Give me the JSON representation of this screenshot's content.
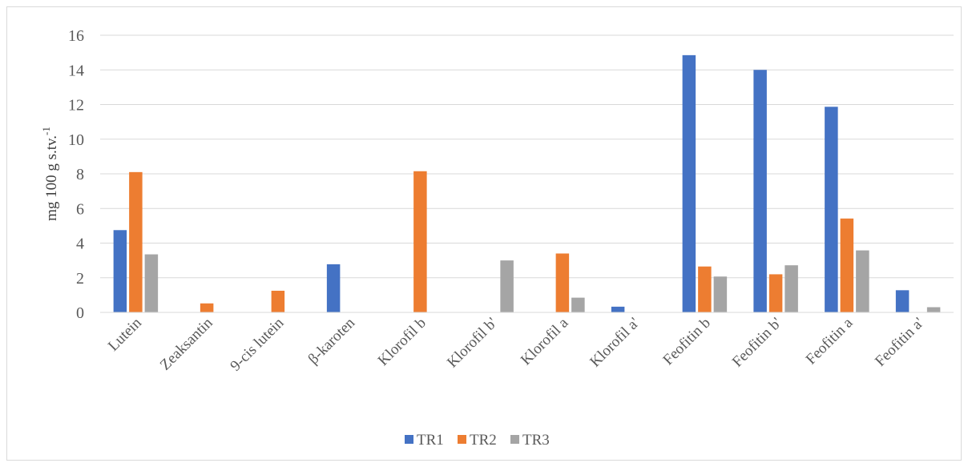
{
  "chart_data": {
    "type": "bar",
    "y_label": "mg 100 g s.tv.",
    "y_label_superscript": "-1",
    "categories": [
      "Lutein",
      "Zeaksantin",
      "9-cis lutein",
      "β-karoten",
      "Klorofil b",
      "Klorofil b'",
      "Klorofil a",
      "Klorofil a'",
      "Feofitin b",
      "Feofitin b'",
      "Feofitin a",
      "Feofitin a'"
    ],
    "series": [
      {
        "name": "TR1",
        "color": "#4472c4",
        "values": [
          4.75,
          0,
          0,
          2.78,
          0,
          0,
          0,
          0.33,
          14.85,
          14.0,
          11.87,
          1.28
        ]
      },
      {
        "name": "TR2",
        "color": "#ed7d31",
        "values": [
          8.1,
          0.52,
          1.25,
          0,
          8.15,
          0,
          3.4,
          0,
          2.65,
          2.2,
          5.42,
          0
        ]
      },
      {
        "name": "TR3",
        "color": "#a5a5a5",
        "values": [
          3.35,
          0,
          0,
          0,
          0,
          3.0,
          0.85,
          0,
          2.07,
          2.72,
          3.58,
          0.3
        ]
      }
    ],
    "ylim": [
      0,
      16
    ],
    "yticks": [
      0,
      2,
      4,
      6,
      8,
      10,
      12,
      14,
      16
    ],
    "grid": true,
    "legend": "bottom"
  }
}
